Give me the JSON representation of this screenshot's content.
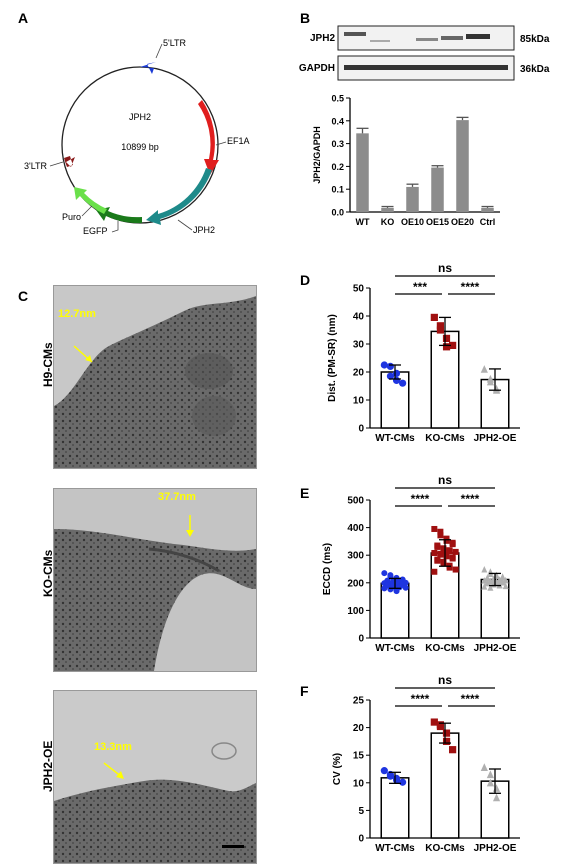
{
  "panels": {
    "A": {
      "letter": "A",
      "center_name": "JPH2",
      "size": "10899 bp",
      "features": [
        "5'LTR",
        "EF1A",
        "JPH2",
        "EGFP",
        "Puro",
        "3'LTR"
      ]
    },
    "B": {
      "letter": "B",
      "blot_rows": [
        {
          "name": "JPH2",
          "size": "85kDa"
        },
        {
          "name": "GAPDH",
          "size": "36kDa"
        }
      ]
    },
    "C": {
      "letter": "C",
      "images": [
        {
          "label": "H9-CMs",
          "measure": "12.7nm"
        },
        {
          "label": "KO-CMs",
          "measure": "37.7nm"
        },
        {
          "label": "JPH2-OE",
          "measure": "13.3nm"
        }
      ]
    },
    "D": {
      "letter": "D"
    },
    "E": {
      "letter": "E"
    },
    "F": {
      "letter": "F"
    }
  },
  "colors": {
    "bar_gray": "#8c8c8c",
    "wt_blue": "#1f35e0",
    "ko_red": "#a01010",
    "oe_gray": "#b0b0b0",
    "highlight_yellow": "#ffff00",
    "ltr5": "#1a3ad6",
    "ef1a": "#e01e1e",
    "jph2": "#1e8a8a",
    "egfp": "#1a7a1a",
    "puro": "#6ae04a",
    "ltr3": "#8a1a1a"
  },
  "chart_data": [
    {
      "id": "B",
      "type": "bar",
      "categories": [
        "WT",
        "KO",
        "OE10",
        "OE15",
        "OE20",
        "Ctrl"
      ],
      "values": [
        0.345,
        0.018,
        0.11,
        0.195,
        0.403,
        0.018
      ],
      "errors": [
        0.022,
        0.006,
        0.012,
        0.008,
        0.012,
        0.006
      ],
      "ylabel": "JPH2/GAPDH",
      "ylim": [
        0,
        0.5
      ],
      "yticks": [
        "0.0",
        "0.1",
        "0.2",
        "0.3",
        "0.4",
        "0.5"
      ]
    },
    {
      "id": "D",
      "type": "bar",
      "categories": [
        "WT-CMs",
        "KO-CMs",
        "JPH2-OE"
      ],
      "values": [
        20,
        34.5,
        17.3
      ],
      "errors": [
        2.5,
        5,
        3.8
      ],
      "points": [
        [
          22.5,
          22,
          18.5,
          19.5,
          17,
          16
        ],
        [
          39.5,
          36.5,
          35,
          32,
          29,
          29.5
        ],
        [
          21,
          17.5,
          16.5,
          14,
          13.5
        ]
      ],
      "ylabel": "Dist. (PM-SR) (nm)",
      "ylim": [
        0,
        50
      ],
      "yticks": [
        "0",
        "10",
        "20",
        "30",
        "40",
        "50"
      ],
      "annotations": [
        "ns",
        "***",
        "****"
      ]
    },
    {
      "id": "E",
      "type": "bar",
      "categories": [
        "WT-CMs",
        "KO-CMs",
        "JPH2-OE"
      ],
      "values": [
        198,
        308,
        212
      ],
      "errors": [
        18,
        48,
        22
      ],
      "points": [
        [
          235,
          228,
          222,
          218,
          215,
          212,
          210,
          208,
          206,
          205,
          204,
          203,
          202,
          200,
          199,
          198,
          197,
          196,
          195,
          194,
          193,
          192,
          191,
          190,
          188,
          186,
          184,
          182,
          180,
          178,
          176,
          174,
          170
        ],
        [
          395,
          385,
          372,
          360,
          352,
          345,
          340,
          335,
          330,
          325,
          320,
          318,
          315,
          312,
          308,
          305,
          302,
          300,
          296,
          292,
          288,
          284,
          280,
          276,
          270,
          262,
          255,
          248,
          240
        ],
        [
          248,
          240,
          232,
          228,
          225,
          222,
          220,
          218,
          216,
          214,
          212,
          211,
          210,
          209,
          208,
          206,
          205,
          204,
          203,
          202,
          201,
          200,
          198,
          196,
          194,
          192,
          190,
          188,
          186,
          182
        ]
      ],
      "ylabel": "ECCD (ms)",
      "ylim": [
        0,
        500
      ],
      "yticks": [
        "0",
        "100",
        "200",
        "300",
        "400",
        "500"
      ],
      "annotations": [
        "ns",
        "****",
        "****"
      ]
    },
    {
      "id": "F",
      "type": "bar",
      "categories": [
        "WT-CMs",
        "KO-CMs",
        "JPH2-OE"
      ],
      "values": [
        10.9,
        19,
        10.3
      ],
      "errors": [
        1,
        1.8,
        2.2
      ],
      "points": [
        [
          12.2,
          11.5,
          11.2,
          10.8,
          10.5,
          10.1
        ],
        [
          21,
          20.5,
          20.2,
          19,
          17.5,
          16
        ],
        [
          12.8,
          11.5,
          10,
          9,
          7.3
        ]
      ],
      "ylabel": "CV (%)",
      "ylim": [
        0,
        25
      ],
      "yticks": [
        "0",
        "5",
        "10",
        "15",
        "20",
        "25"
      ],
      "annotations": [
        "ns",
        "****",
        "****"
      ]
    }
  ]
}
